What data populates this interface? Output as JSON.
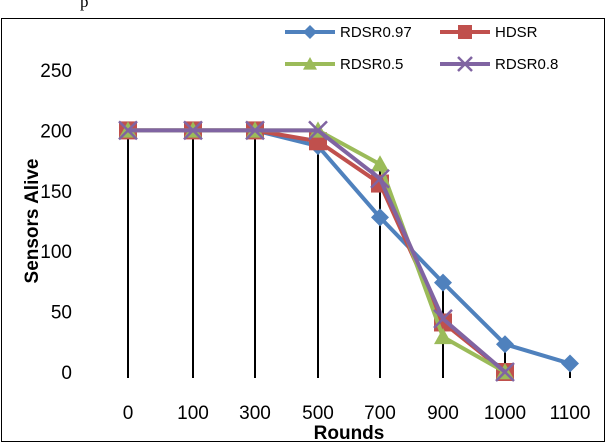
{
  "top_text": "p",
  "chart_data": {
    "type": "line",
    "x": [
      "0",
      "100",
      "300",
      "500",
      "700",
      "900",
      "1000",
      "1100"
    ],
    "xlabel": "Rounds",
    "ylabel": "Sensors Alive",
    "ylim": [
      0,
      250
    ],
    "yticks": [
      "0",
      "50",
      "100",
      "150",
      "200",
      "250"
    ],
    "grid": false,
    "drop_lines": true,
    "legend_position": "top-right",
    "series": [
      {
        "name": "RDSR0.97",
        "color": "#4f81bd",
        "marker": "diamond",
        "values": [
          200,
          200,
          200,
          187,
          128,
          74,
          23,
          7
        ]
      },
      {
        "name": "HDSR",
        "color": "#c0504d",
        "marker": "square",
        "values": [
          200,
          200,
          200,
          191,
          156,
          41,
          0,
          null
        ]
      },
      {
        "name": "RDSR0.5",
        "color": "#9bbb59",
        "marker": "triangle",
        "values": [
          200,
          200,
          200,
          200,
          172,
          29,
          0,
          null
        ]
      },
      {
        "name": "RDSR0.8",
        "color": "#8064a2",
        "marker": "x",
        "values": [
          200,
          200,
          200,
          200,
          160,
          44,
          0,
          null
        ]
      }
    ]
  }
}
